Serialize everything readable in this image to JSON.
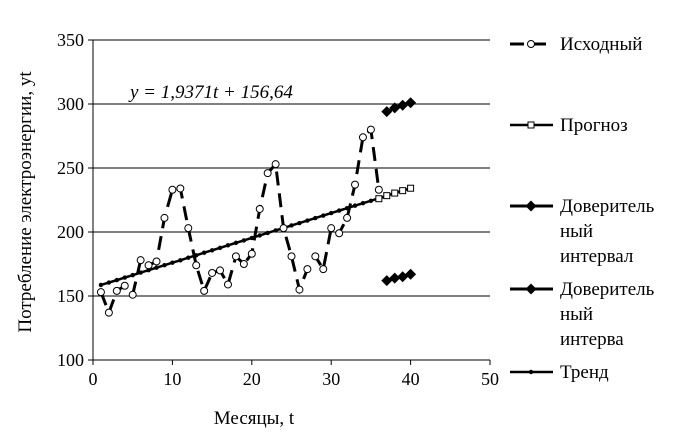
{
  "chart_data": {
    "type": "line",
    "title": "",
    "xlabel": "Месяцы, t",
    "ylabel": "Потребление электроэнергии, yt",
    "xlim": [
      0,
      50
    ],
    "ylim": [
      100,
      350
    ],
    "x_ticks": [
      0,
      10,
      20,
      30,
      40,
      50
    ],
    "y_ticks": [
      100,
      150,
      200,
      250,
      300,
      350
    ],
    "grid": "horizontal",
    "legend_position": "right",
    "annotation": "y = 1,9371t + 156,64",
    "series": [
      {
        "name": "Исходный",
        "style": "dashed-circle",
        "color": "#000000",
        "x": [
          1,
          2,
          3,
          4,
          5,
          6,
          7,
          8,
          9,
          10,
          11,
          12,
          13,
          14,
          15,
          16,
          17,
          18,
          19,
          20,
          21,
          22,
          23,
          24,
          25,
          26,
          27,
          28,
          29,
          30,
          31,
          32,
          33,
          34,
          35,
          36
        ],
        "y": [
          153,
          137,
          154,
          158,
          151,
          178,
          174,
          177,
          211,
          233,
          234,
          203,
          174,
          154,
          168,
          170,
          159,
          181,
          175,
          183,
          218,
          246,
          253,
          203,
          181,
          155,
          171,
          181,
          171,
          203,
          199,
          211,
          237,
          274,
          280,
          233
        ]
      },
      {
        "name": "Прогноз",
        "style": "solid-square",
        "color": "#000000",
        "x": [
          36,
          37,
          38,
          39,
          40
        ],
        "y": [
          226,
          228.4,
          230.4,
          232.3,
          234.2
        ]
      },
      {
        "name": "Доверитель ный интервал",
        "style": "solid-diamond",
        "color": "#000000",
        "x": [
          37,
          38,
          39,
          40
        ],
        "y": [
          294,
          297,
          299,
          301
        ]
      },
      {
        "name": "Доверитель ный интерва",
        "style": "solid-diamond",
        "color": "#000000",
        "x": [
          37,
          38,
          39,
          40
        ],
        "y": [
          162,
          164,
          165,
          167
        ]
      },
      {
        "name": "Тренд",
        "style": "solid-dot",
        "color": "#000000",
        "x": [
          1,
          2,
          3,
          4,
          5,
          6,
          7,
          8,
          9,
          10,
          11,
          12,
          13,
          14,
          15,
          16,
          17,
          18,
          19,
          20,
          21,
          22,
          23,
          24,
          25,
          26,
          27,
          28,
          29,
          30,
          31,
          32,
          33,
          34,
          35,
          36
        ],
        "y": [
          158.6,
          160.5,
          162.4,
          164.4,
          166.3,
          168.3,
          170.2,
          172.1,
          174.1,
          176,
          177.9,
          179.9,
          181.8,
          183.8,
          185.7,
          187.6,
          189.6,
          191.5,
          193.4,
          195.4,
          197.3,
          199.3,
          201.2,
          203.1,
          205.1,
          207,
          208.9,
          210.9,
          212.8,
          214.8,
          216.7,
          218.6,
          220.6,
          222.5,
          224.4,
          226.4
        ]
      }
    ]
  }
}
